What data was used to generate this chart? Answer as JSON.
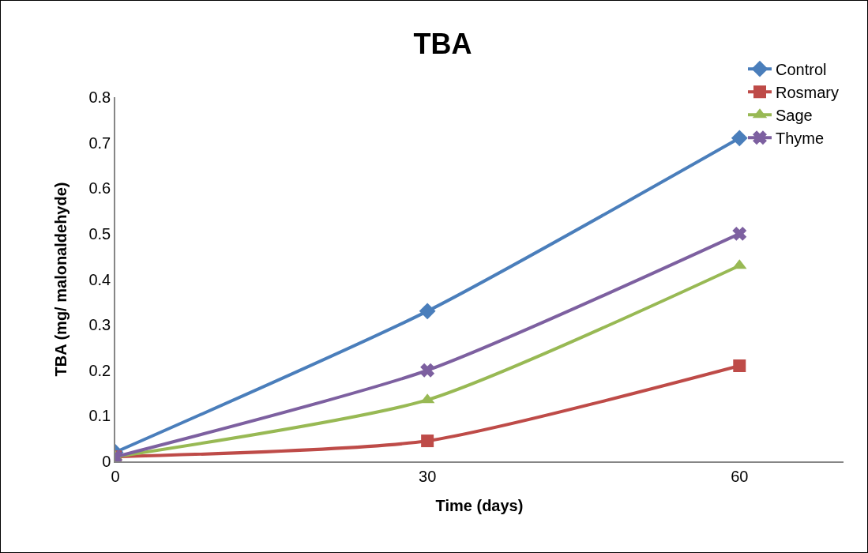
{
  "chart_data": {
    "type": "line",
    "title": "TBA",
    "xlabel": "Time (days)",
    "ylabel": "TBA (mg/ malonaldehyde)",
    "x": [
      0,
      30,
      60
    ],
    "xlim": [
      0,
      70
    ],
    "xticks": [
      0,
      30,
      60
    ],
    "ylim": [
      0,
      0.8
    ],
    "yticks": [
      0,
      0.1,
      0.2,
      0.3,
      0.4,
      0.5,
      0.6,
      0.7,
      0.8
    ],
    "grid": false,
    "legend": "top right",
    "line_style": "solid",
    "series": [
      {
        "name": "Control",
        "color": "#4a7ebb",
        "marker": "diamond",
        "values": [
          0.02,
          0.33,
          0.71
        ]
      },
      {
        "name": "Rosmary",
        "color": "#be4b48",
        "marker": "square",
        "values": [
          0.01,
          0.045,
          0.21
        ]
      },
      {
        "name": "Sage",
        "color": "#98b954",
        "marker": "triangle",
        "values": [
          0.01,
          0.135,
          0.43
        ]
      },
      {
        "name": "Thyme",
        "color": "#7d60a0",
        "marker": "cross",
        "values": [
          0.01,
          0.2,
          0.5
        ]
      }
    ]
  }
}
